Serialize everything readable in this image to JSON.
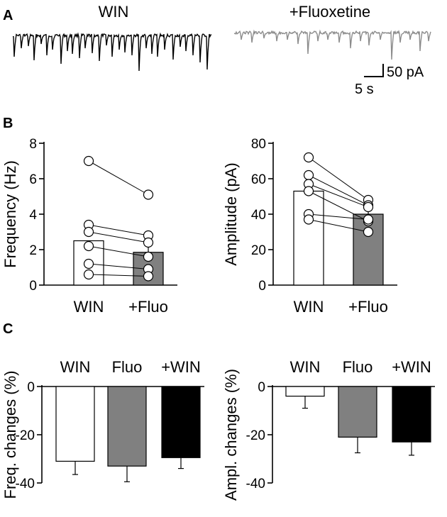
{
  "panel_labels": [
    "A",
    "B",
    "C"
  ],
  "traces": {
    "win_label": "WIN",
    "fluo_label": "+Fluoxetine",
    "win_color": "#000000",
    "fluo_color": "#8c8c8c",
    "scale_current": "50 pA",
    "scale_time": "5 s"
  },
  "colors": {
    "open_bar": "#ffffff",
    "gray_bar": "#808080",
    "black_bar": "#000000"
  },
  "chart_data": [
    {
      "type": "bar",
      "panel": "B",
      "categories": [
        "WIN",
        "+Fluo"
      ],
      "ylabel": "Frequency (Hz)",
      "ylim": [
        0,
        8
      ],
      "yticks": [
        0,
        2,
        4,
        6,
        8
      ],
      "values": [
        2.5,
        1.85
      ],
      "errors": [
        0,
        0.35
      ],
      "bar_colors": [
        "#ffffff",
        "#808080"
      ],
      "paired_points": [
        [
          7.0,
          5.1
        ],
        [
          3.4,
          2.8
        ],
        [
          3.0,
          2.4
        ],
        [
          2.2,
          1.6
        ],
        [
          1.2,
          0.9
        ],
        [
          0.6,
          0.5
        ]
      ]
    },
    {
      "type": "bar",
      "panel": "B",
      "categories": [
        "WIN",
        "+Fluo"
      ],
      "ylabel": "Amplitude (pA)",
      "ylim": [
        0,
        80
      ],
      "yticks": [
        0,
        20,
        40,
        60,
        80
      ],
      "values": [
        53,
        40
      ],
      "errors": [
        3.5,
        3
      ],
      "bar_colors": [
        "#ffffff",
        "#808080"
      ],
      "paired_points": [
        [
          72,
          48
        ],
        [
          62,
          45
        ],
        [
          57,
          44
        ],
        [
          53,
          36
        ],
        [
          40,
          37
        ],
        [
          37,
          30
        ]
      ]
    },
    {
      "type": "bar",
      "panel": "C",
      "categories": [
        "WIN",
        "Fluo",
        "+WIN"
      ],
      "ylabel": "Freq. changes (%)",
      "ylim": [
        -40,
        0
      ],
      "yticks": [
        0,
        -20,
        -40
      ],
      "values": [
        -31,
        -33,
        -29.5
      ],
      "errors": [
        5.5,
        6.5,
        4.5
      ],
      "bar_colors": [
        "#ffffff",
        "#808080",
        "#000000"
      ]
    },
    {
      "type": "bar",
      "panel": "C",
      "categories": [
        "WIN",
        "Fluo",
        "+WIN"
      ],
      "ylabel": "Ampl. changes (%)",
      "ylim": [
        -40,
        0
      ],
      "yticks": [
        0,
        -20,
        -40
      ],
      "values": [
        -4,
        -21,
        -23
      ],
      "errors": [
        5,
        6.5,
        5.5
      ],
      "bar_colors": [
        "#ffffff",
        "#808080",
        "#000000"
      ]
    }
  ]
}
